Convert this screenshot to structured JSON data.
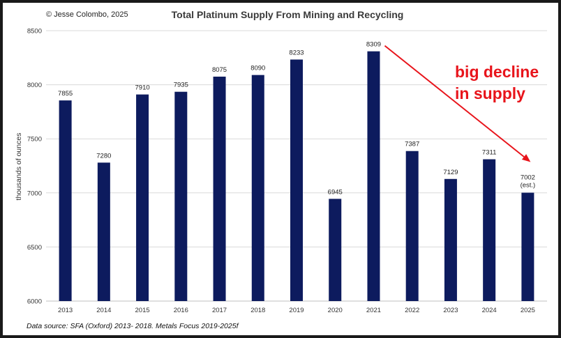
{
  "header": {
    "copyright": "© Jesse Colombo, 2025",
    "title": "Total Platinum Supply From Mining and Recycling"
  },
  "footer": {
    "source": "Data source: SFA (Oxford) 2013- 2018. Metals Focus 2019-2025f"
  },
  "annotation": {
    "line1": "big decline",
    "line2": "in supply",
    "color": "#e8141b"
  },
  "chart_data": {
    "type": "bar",
    "categories": [
      "2013",
      "2014",
      "2015",
      "2016",
      "2017",
      "2018",
      "2019",
      "2020",
      "2021",
      "2022",
      "2023",
      "2024",
      "2025"
    ],
    "values": [
      7855,
      7280,
      7910,
      7935,
      8075,
      8090,
      8233,
      6945,
      8309,
      7387,
      7129,
      7311,
      7002
    ],
    "value_labels": [
      "7855",
      "7280",
      "7910",
      "7935",
      "8075",
      "8090",
      "8233",
      "6945",
      "8309",
      "7387",
      "7129",
      "7311",
      "7002"
    ],
    "extra_labels": {
      "12": "(est.)"
    },
    "ylabel": "thousands of ounces",
    "ylim": [
      6000,
      8500
    ],
    "yticks": [
      6000,
      6500,
      7000,
      7500,
      8000,
      8500
    ],
    "grid": true,
    "bar_color": "#0d1b5e",
    "arrow": {
      "from_category": "2021",
      "to_category": "2025",
      "color": "#e8141b"
    }
  }
}
